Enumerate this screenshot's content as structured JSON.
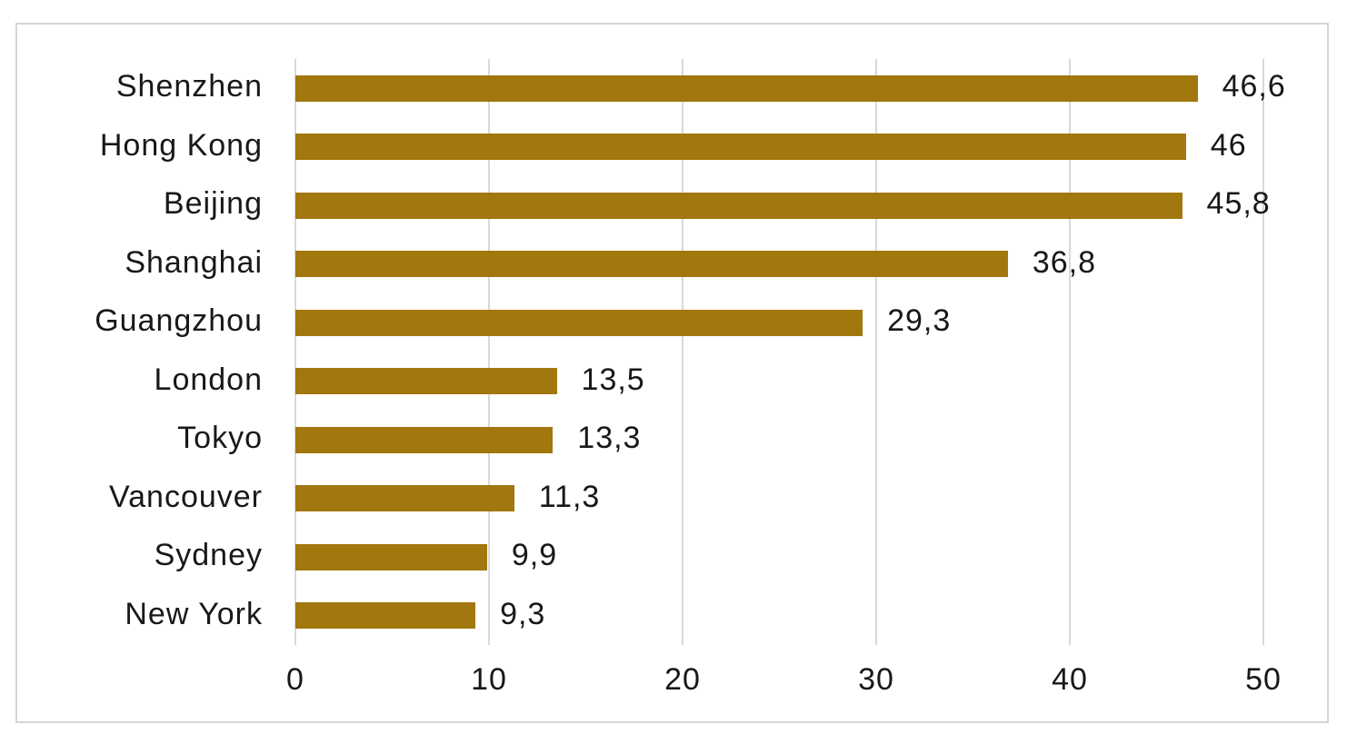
{
  "chart_data": {
    "type": "bar",
    "orientation": "horizontal",
    "title": "",
    "categories": [
      "Shenzhen",
      "Hong Kong",
      "Beijing",
      "Shanghai",
      "Guangzhou",
      "London",
      "Tokyo",
      "Vancouver",
      "Sydney",
      "New York"
    ],
    "values": [
      46.6,
      46,
      45.8,
      36.8,
      29.3,
      13.5,
      13.3,
      11.3,
      9.9,
      9.3
    ],
    "value_labels": [
      "46,6",
      "46",
      "45,8",
      "36,8",
      "29,3",
      "13,5",
      "13,3",
      "11,3",
      "9,9",
      "9,3"
    ],
    "xlabel": "",
    "ylabel": "",
    "xlim": [
      0,
      50
    ],
    "x_tick_values": [
      0,
      10,
      20,
      30,
      40,
      50
    ],
    "x_tick_labels": [
      "0",
      "10",
      "20",
      "30",
      "40",
      "50"
    ],
    "grid": "vertical gridlines on",
    "legend": "none",
    "decimal_separator": ",",
    "bar_color": "#a1770e",
    "gridline_color": "#d9d9d9",
    "frame_border_color": "#d6d6d6",
    "text_color": "#181818",
    "background_color": "#ffffff"
  }
}
